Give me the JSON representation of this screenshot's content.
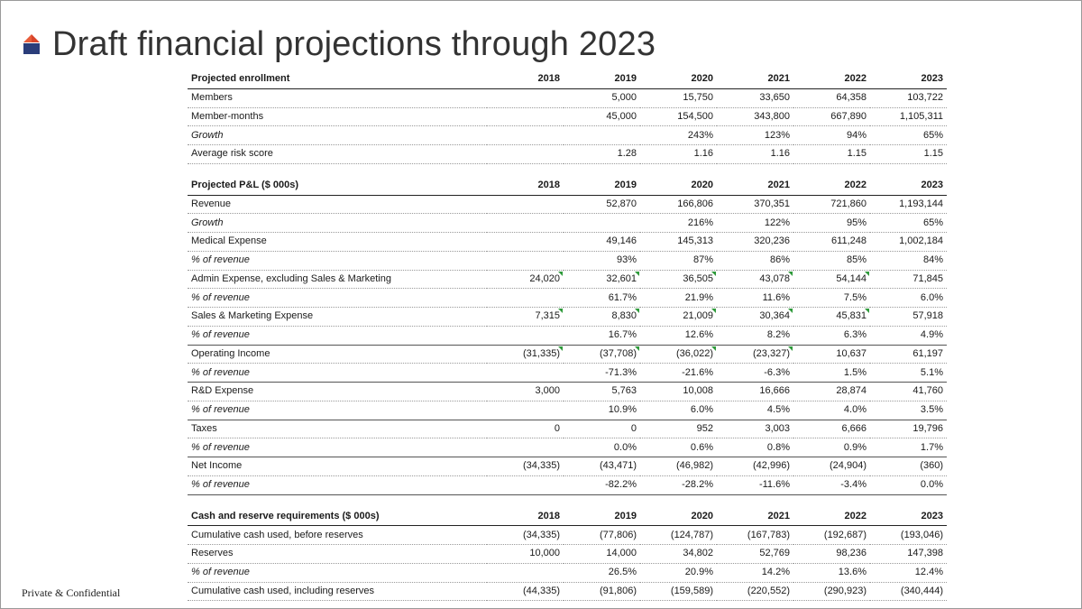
{
  "slide": {
    "title": "Draft financial projections through 2023",
    "footer": "Private & Confidential"
  },
  "colors": {
    "logo_red": "#d8442a",
    "logo_blue": "#2a3d7a",
    "flag_green": "#2e9a3a"
  },
  "enrollment": {
    "header": "Projected enrollment",
    "years": [
      "2018",
      "2019",
      "2020",
      "2021",
      "2022",
      "2023"
    ],
    "rows": [
      {
        "label": "Members",
        "values": [
          "",
          "5,000",
          "15,750",
          "33,650",
          "64,358",
          "103,722"
        ]
      },
      {
        "label": "Member-months",
        "values": [
          "",
          "45,000",
          "154,500",
          "343,800",
          "667,890",
          "1,105,311"
        ]
      },
      {
        "label": "Growth",
        "values": [
          "",
          "",
          "243%",
          "123%",
          "94%",
          "65%"
        ]
      },
      {
        "label": "Average risk score",
        "values": [
          "",
          "1.28",
          "1.16",
          "1.16",
          "1.15",
          "1.15"
        ]
      }
    ]
  },
  "pnl": {
    "header": "Projected P&L ($ 000s)",
    "years": [
      "2018",
      "2019",
      "2020",
      "2021",
      "2022",
      "2023"
    ],
    "rows": [
      {
        "label": "Revenue",
        "values": [
          "",
          "52,870",
          "166,806",
          "370,351",
          "721,860",
          "1,193,144"
        ]
      },
      {
        "label": "Growth",
        "values": [
          "",
          "",
          "216%",
          "122%",
          "95%",
          "65%"
        ]
      },
      {
        "label": "Medical Expense",
        "values": [
          "",
          "49,146",
          "145,313",
          "320,236",
          "611,248",
          "1,002,184"
        ]
      },
      {
        "label": "% of revenue",
        "values": [
          "",
          "93%",
          "87%",
          "86%",
          "85%",
          "84%"
        ]
      },
      {
        "label": "Admin Expense, excluding Sales & Marketing",
        "values": [
          "24,020",
          "32,601",
          "36,505",
          "43,078",
          "54,144",
          "71,845"
        ]
      },
      {
        "label": "% of revenue",
        "values": [
          "",
          "61.7%",
          "21.9%",
          "11.6%",
          "7.5%",
          "6.0%"
        ]
      },
      {
        "label": "Sales & Marketing Expense",
        "values": [
          "7,315",
          "8,830",
          "21,009",
          "30,364",
          "45,831",
          "57,918"
        ]
      },
      {
        "label": "% of revenue",
        "values": [
          "",
          "16.7%",
          "12.6%",
          "8.2%",
          "6.3%",
          "4.9%"
        ]
      },
      {
        "label": "Operating Income",
        "values": [
          "(31,335)",
          "(37,708)",
          "(36,022)",
          "(23,327)",
          "10,637",
          "61,197"
        ]
      },
      {
        "label": "% of revenue",
        "values": [
          "",
          "-71.3%",
          "-21.6%",
          "-6.3%",
          "1.5%",
          "5.1%"
        ]
      },
      {
        "label": "R&D Expense",
        "values": [
          "3,000",
          "5,763",
          "10,008",
          "16,666",
          "28,874",
          "41,760"
        ]
      },
      {
        "label": "% of revenue",
        "values": [
          "",
          "10.9%",
          "6.0%",
          "4.5%",
          "4.0%",
          "3.5%"
        ]
      },
      {
        "label": "Taxes",
        "values": [
          "0",
          "0",
          "952",
          "3,003",
          "6,666",
          "19,796"
        ]
      },
      {
        "label": "% of revenue",
        "values": [
          "",
          "0.0%",
          "0.6%",
          "0.8%",
          "0.9%",
          "1.7%"
        ]
      },
      {
        "label": "Net Income",
        "values": [
          "(34,335)",
          "(43,471)",
          "(46,982)",
          "(42,996)",
          "(24,904)",
          "(360)"
        ]
      },
      {
        "label": "% of revenue",
        "values": [
          "",
          "-82.2%",
          "-28.2%",
          "-11.6%",
          "-3.4%",
          "0.0%"
        ]
      }
    ]
  },
  "cash": {
    "header": "Cash and reserve requirements ($ 000s)",
    "years": [
      "2018",
      "2019",
      "2020",
      "2021",
      "2022",
      "2023"
    ],
    "rows": [
      {
        "label": "Cumulative cash used, before reserves",
        "values": [
          "(34,335)",
          "(77,806)",
          "(124,787)",
          "(167,783)",
          "(192,687)",
          "(193,046)"
        ]
      },
      {
        "label": "Reserves",
        "values": [
          "10,000",
          "14,000",
          "34,802",
          "52,769",
          "98,236",
          "147,398"
        ]
      },
      {
        "label": "% of revenue",
        "values": [
          "",
          "26.5%",
          "20.9%",
          "14.2%",
          "13.6%",
          "12.4%"
        ]
      },
      {
        "label": "Cumulative cash used, including reserves",
        "values": [
          "(44,335)",
          "(91,806)",
          "(159,589)",
          "(220,552)",
          "(290,923)",
          "(340,444)"
        ]
      }
    ]
  }
}
